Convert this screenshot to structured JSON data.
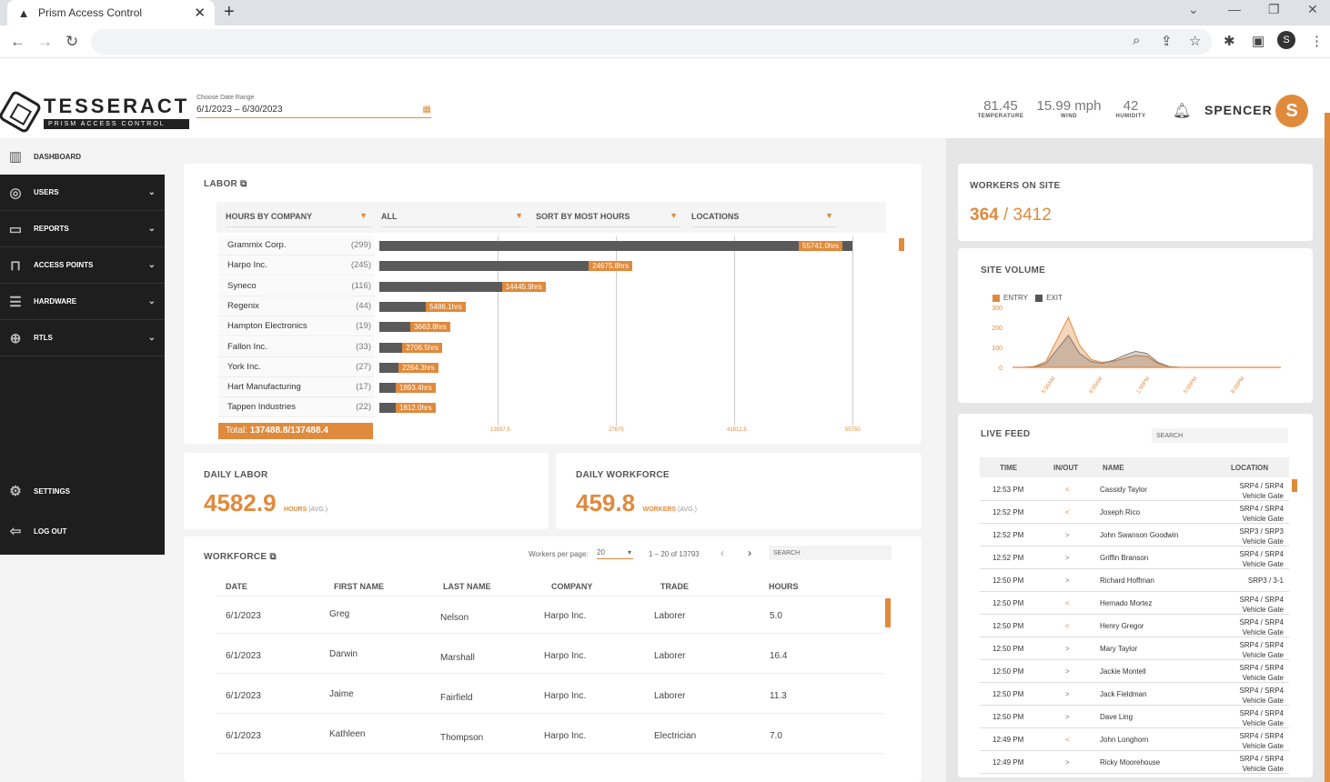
{
  "browser": {
    "tab_title": "Prism Access Control",
    "tab_close": "✕",
    "new_tab": "+",
    "profile_initial": "S"
  },
  "header": {
    "logo_name": "TESSERACT",
    "logo_sub": "PRISM ACCESS CONTROL",
    "date_label": "Choose Date Range",
    "date_value": "6/1/2023 – 6/30/2023",
    "temperature": "81.45",
    "temperature_label": "TEMPERATURE",
    "wind": "15.99 mph",
    "wind_label": "WIND",
    "humidity": "42",
    "humidity_label": "HUMIDITY",
    "user_name": "SPENCER",
    "user_initial": "S"
  },
  "sidebar": {
    "dashboard": "DASHBOARD",
    "items": [
      {
        "label": "USERS"
      },
      {
        "label": "REPORTS"
      },
      {
        "label": "ACCESS POINTS"
      },
      {
        "label": "HARDWARE"
      },
      {
        "label": "RTLS"
      }
    ],
    "settings": "SETTINGS",
    "logout": "LOG OUT"
  },
  "labor": {
    "title": "LABOR",
    "filters": [
      "HOURS BY COMPANY",
      "ALL",
      "SORT BY MOST HOURS",
      "LOCATIONS"
    ],
    "total_prefix": "Total: ",
    "total_value": "137488.8/137488.4",
    "chart_data": {
      "type": "bar",
      "categories": [
        "Grammix Corp.",
        "Harpo Inc.",
        "Syneco",
        "Regenix",
        "Hampton Electronics",
        "Fallon Inc.",
        "York Inc.",
        "Hart Manufacturing",
        "Tappen Industries"
      ],
      "counts": [
        "(299)",
        "(245)",
        "(116)",
        "(44)",
        "(19)",
        "(33)",
        "(27)",
        "(17)",
        "(22)"
      ],
      "values": [
        55741.0,
        24675.8,
        14445.9,
        5486.1,
        3663.8,
        2706.5,
        2264.3,
        1893.4,
        1812.0
      ],
      "value_labels": [
        "55741.0hrs",
        "24675.8hrs",
        "14445.9hrs",
        "5486.1hrs",
        "3663.8hrs",
        "2706.5hrs",
        "2264.3hrs",
        "1893.4hrs",
        "1812.0hrs"
      ],
      "x_ticks": [
        "13937.5",
        "27875",
        "41812.5",
        "55750"
      ],
      "x_tick_values": [
        13937.5,
        27875,
        41812.5,
        55750
      ],
      "xlim": [
        0,
        55750
      ]
    }
  },
  "daily_labor": {
    "title": "DAILY LABOR",
    "value": "4582.9",
    "unit": "HOURS",
    "avg": "(AVG.)"
  },
  "daily_workforce": {
    "title": "DAILY WORKFORCE",
    "value": "459.8",
    "unit": "WORKERS",
    "avg": "(AVG.)"
  },
  "workforce": {
    "title": "WORKFORCE",
    "per_page_label": "Workers per page:",
    "per_page": "20",
    "range": "1 – 20 of 13793",
    "search_placeholder": "SEARCH",
    "columns": [
      "DATE",
      "FIRST NAME",
      "LAST NAME",
      "COMPANY",
      "TRADE",
      "HOURS"
    ],
    "rows": [
      [
        "6/1/2023",
        "Greg",
        "Nelson",
        "Harpo Inc.",
        "Laborer",
        "5.0"
      ],
      [
        "6/1/2023",
        "Darwin",
        "Marshall",
        "Harpo Inc.",
        "Laborer",
        "16.4"
      ],
      [
        "6/1/2023",
        "Jaime",
        "Fairfield",
        "Harpo Inc.",
        "Laborer",
        "11.3"
      ],
      [
        "6/1/2023",
        "Kathleen",
        "Thompson",
        "Harpo Inc.",
        "Electrician",
        "7.0"
      ]
    ]
  },
  "workers_on_site": {
    "title": "WORKERS ON SITE",
    "current": "364",
    "separator": " / ",
    "total": "3412"
  },
  "site_volume": {
    "title": "SITE VOLUME",
    "legend_entry": "ENTRY",
    "legend_exit": "EXIT",
    "chart_data": {
      "type": "area",
      "y_ticks": [
        "300",
        "200",
        "100",
        "0"
      ],
      "ylim": [
        0,
        300
      ],
      "x_ticks": [
        "5:00AM",
        "9:00AM",
        "1:00PM",
        "5:00PM",
        "9:00PM"
      ],
      "series": [
        {
          "name": "ENTRY",
          "values": [
            0,
            0,
            5,
            30,
            140,
            250,
            110,
            40,
            25,
            30,
            45,
            60,
            55,
            20,
            3,
            0,
            0,
            0,
            0,
            0,
            0,
            0,
            0,
            0,
            0
          ]
        },
        {
          "name": "EXIT",
          "values": [
            0,
            0,
            3,
            20,
            90,
            160,
            70,
            30,
            20,
            35,
            60,
            80,
            70,
            25,
            4,
            0,
            0,
            0,
            0,
            0,
            0,
            0,
            0,
            0,
            0
          ]
        }
      ],
      "colors": {
        "entry": "#e08a3c",
        "exit": "#555555"
      }
    }
  },
  "live_feed": {
    "title": "LIVE FEED",
    "search_placeholder": "SEARCH",
    "columns": [
      "TIME",
      "IN/OUT",
      "NAME",
      "LOCATION"
    ],
    "rows": [
      {
        "time": "12:53 PM",
        "dir": "<",
        "name": "Cassidy Taylor",
        "loc1": "SRP4 / SRP4",
        "loc2": "Vehicle Gate"
      },
      {
        "time": "12:52 PM",
        "dir": "<",
        "name": "Joseph Rico",
        "loc1": "SRP4 / SRP4",
        "loc2": "Vehicle Gate"
      },
      {
        "time": "12:52 PM",
        "dir": ">",
        "name": "John Swanson Goodwin",
        "loc1": "SRP3 / SRP3",
        "loc2": "Vehicle Gate"
      },
      {
        "time": "12:52 PM",
        "dir": ">",
        "name": "Griffin Branson",
        "loc1": "SRP4 / SRP4",
        "loc2": "Vehicle Gate"
      },
      {
        "time": "12:50 PM",
        "dir": ">",
        "name": "Richard Hoffman",
        "loc1": "SRP3 / 3-1",
        "loc2": ""
      },
      {
        "time": "12:50 PM",
        "dir": "<",
        "name": "Hernado Mortez",
        "loc1": "SRP4 / SRP4",
        "loc2": "Vehicle Gate"
      },
      {
        "time": "12:50 PM",
        "dir": "<",
        "name": "Henry Gregor",
        "loc1": "SRP4 / SRP4",
        "loc2": "Vehicle Gate"
      },
      {
        "time": "12:50 PM",
        "dir": ">",
        "name": "Mary Taylor",
        "loc1": "SRP4 / SRP4",
        "loc2": "Vehicle Gate"
      },
      {
        "time": "12:50 PM",
        "dir": ">",
        "name": "Jackie Montell",
        "loc1": "SRP4 / SRP4",
        "loc2": "Vehicle Gate"
      },
      {
        "time": "12:50 PM",
        "dir": ">",
        "name": "Jack Fieldman",
        "loc1": "SRP4 / SRP4",
        "loc2": "Vehicle Gate"
      },
      {
        "time": "12:50 PM",
        "dir": ">",
        "name": "Dave Ling",
        "loc1": "SRP4 / SRP4",
        "loc2": "Vehicle Gate"
      },
      {
        "time": "12:49 PM",
        "dir": "<",
        "name": "John Longhorn",
        "loc1": "SRP4 / SRP4",
        "loc2": "Vehicle Gate"
      },
      {
        "time": "12:49 PM",
        "dir": ">",
        "name": "Ricky Moorehouse",
        "loc1": "SRP4 / SRP4",
        "loc2": "Vehicle Gate"
      }
    ]
  },
  "colors": {
    "accent": "#e08a3c",
    "sidebar": "#1e1e1e",
    "bar": "#5a5a5a"
  }
}
